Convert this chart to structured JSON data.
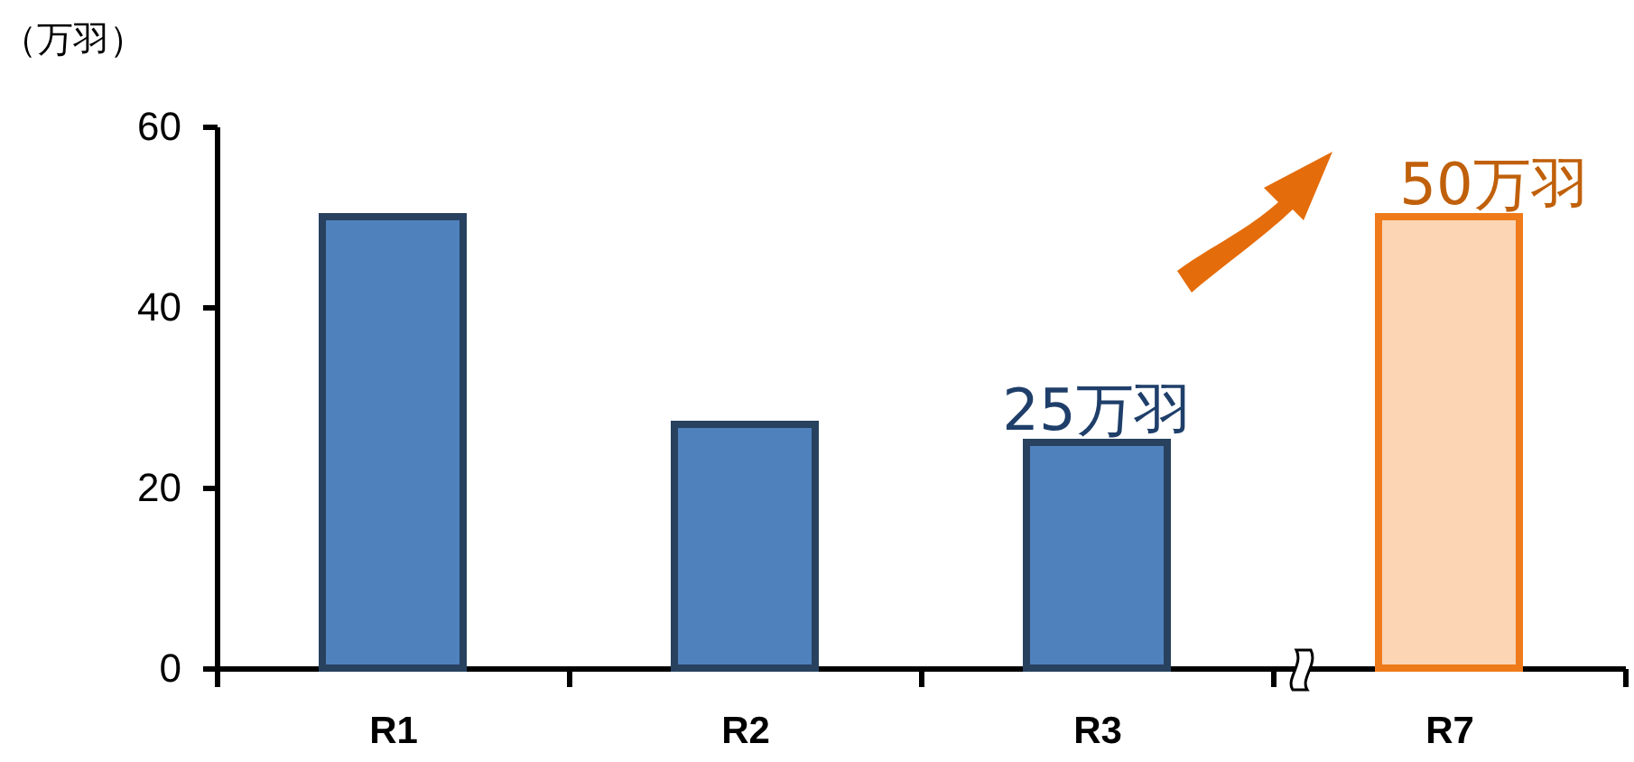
{
  "chart_data": {
    "type": "bar",
    "ylabel": "（万羽）",
    "categories": [
      "R1",
      "R2",
      "R3",
      "R7"
    ],
    "values": [
      50,
      27,
      25,
      50
    ],
    "colors": [
      "#4f81bd",
      "#4f81bd",
      "#4f81bd",
      "#fcd5b5"
    ],
    "ylim": [
      0,
      60
    ],
    "yticks": [
      0,
      20,
      40,
      60
    ],
    "grid": false,
    "annotations": [
      {
        "text": "25万羽",
        "x": "R3",
        "y": 25
      },
      {
        "text": "50万羽",
        "x": "R7",
        "y": 50
      }
    ]
  }
}
